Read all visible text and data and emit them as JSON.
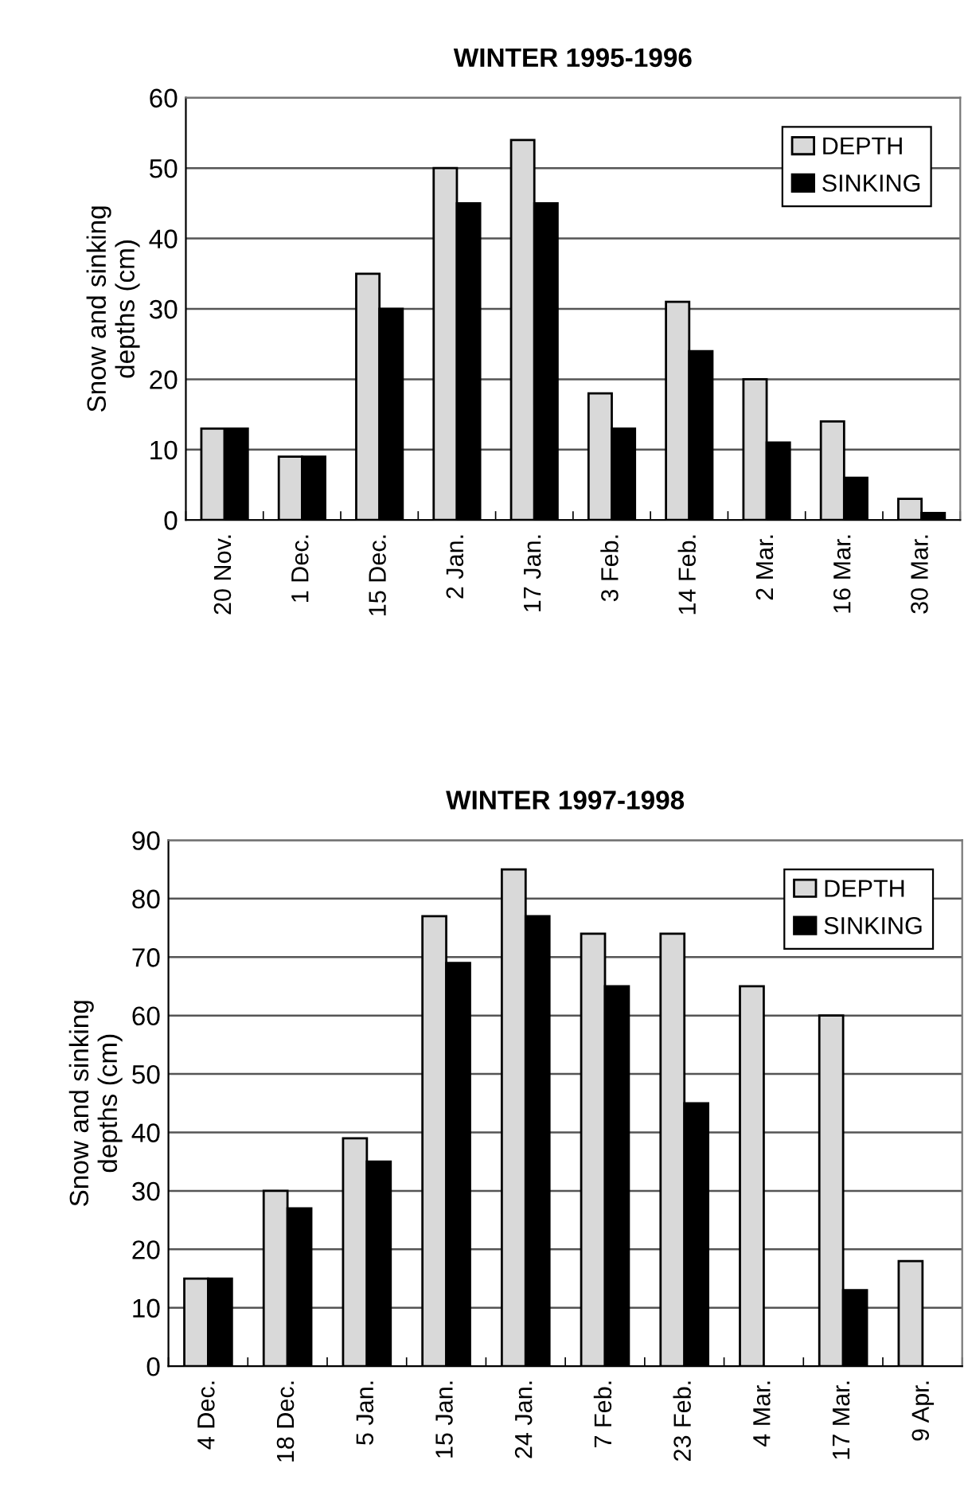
{
  "chart_data": [
    {
      "type": "bar",
      "title": "WINTER 1995-1996",
      "ylabel": "Snow and sinking\ndepths (cm)",
      "categories": [
        "20 Nov.",
        "1 Dec.",
        "15 Dec.",
        "2 Jan.",
        "17 Jan.",
        "3 Feb.",
        "14 Feb.",
        "2 Mar.",
        "16 Mar.",
        "30 Mar."
      ],
      "series": [
        {
          "name": "DEPTH",
          "color": "#d9d9d9",
          "values": [
            13,
            9,
            35,
            50,
            54,
            18,
            31,
            20,
            14,
            3
          ]
        },
        {
          "name": "SINKING",
          "color": "#000000",
          "values": [
            13,
            9,
            30,
            45,
            45,
            13,
            24,
            11,
            6,
            1
          ]
        }
      ],
      "ylim": [
        0,
        60
      ],
      "yticks": [
        0,
        10,
        20,
        30,
        40,
        50,
        60
      ],
      "grid": "y",
      "legend": "top right"
    },
    {
      "type": "bar",
      "title": "WINTER 1997-1998",
      "ylabel": "Snow and sinking\ndepths (cm)",
      "categories": [
        "4 Dec.",
        "18 Dec.",
        "5 Jan.",
        "15 Jan.",
        "24 Jan.",
        "7 Feb.",
        "23 Feb.",
        "4 Mar.",
        "17 Mar.",
        "9 Apr."
      ],
      "series": [
        {
          "name": "DEPTH",
          "color": "#d9d9d9",
          "values": [
            15,
            30,
            39,
            77,
            85,
            74,
            74,
            65,
            60,
            18
          ]
        },
        {
          "name": "SINKING",
          "color": "#000000",
          "values": [
            15,
            27,
            35,
            69,
            77,
            65,
            45,
            null,
            13,
            null
          ]
        }
      ],
      "ylim": [
        0,
        90
      ],
      "yticks": [
        0,
        10,
        20,
        30,
        40,
        50,
        60,
        70,
        80,
        90
      ],
      "grid": "y",
      "legend": "top right"
    }
  ]
}
